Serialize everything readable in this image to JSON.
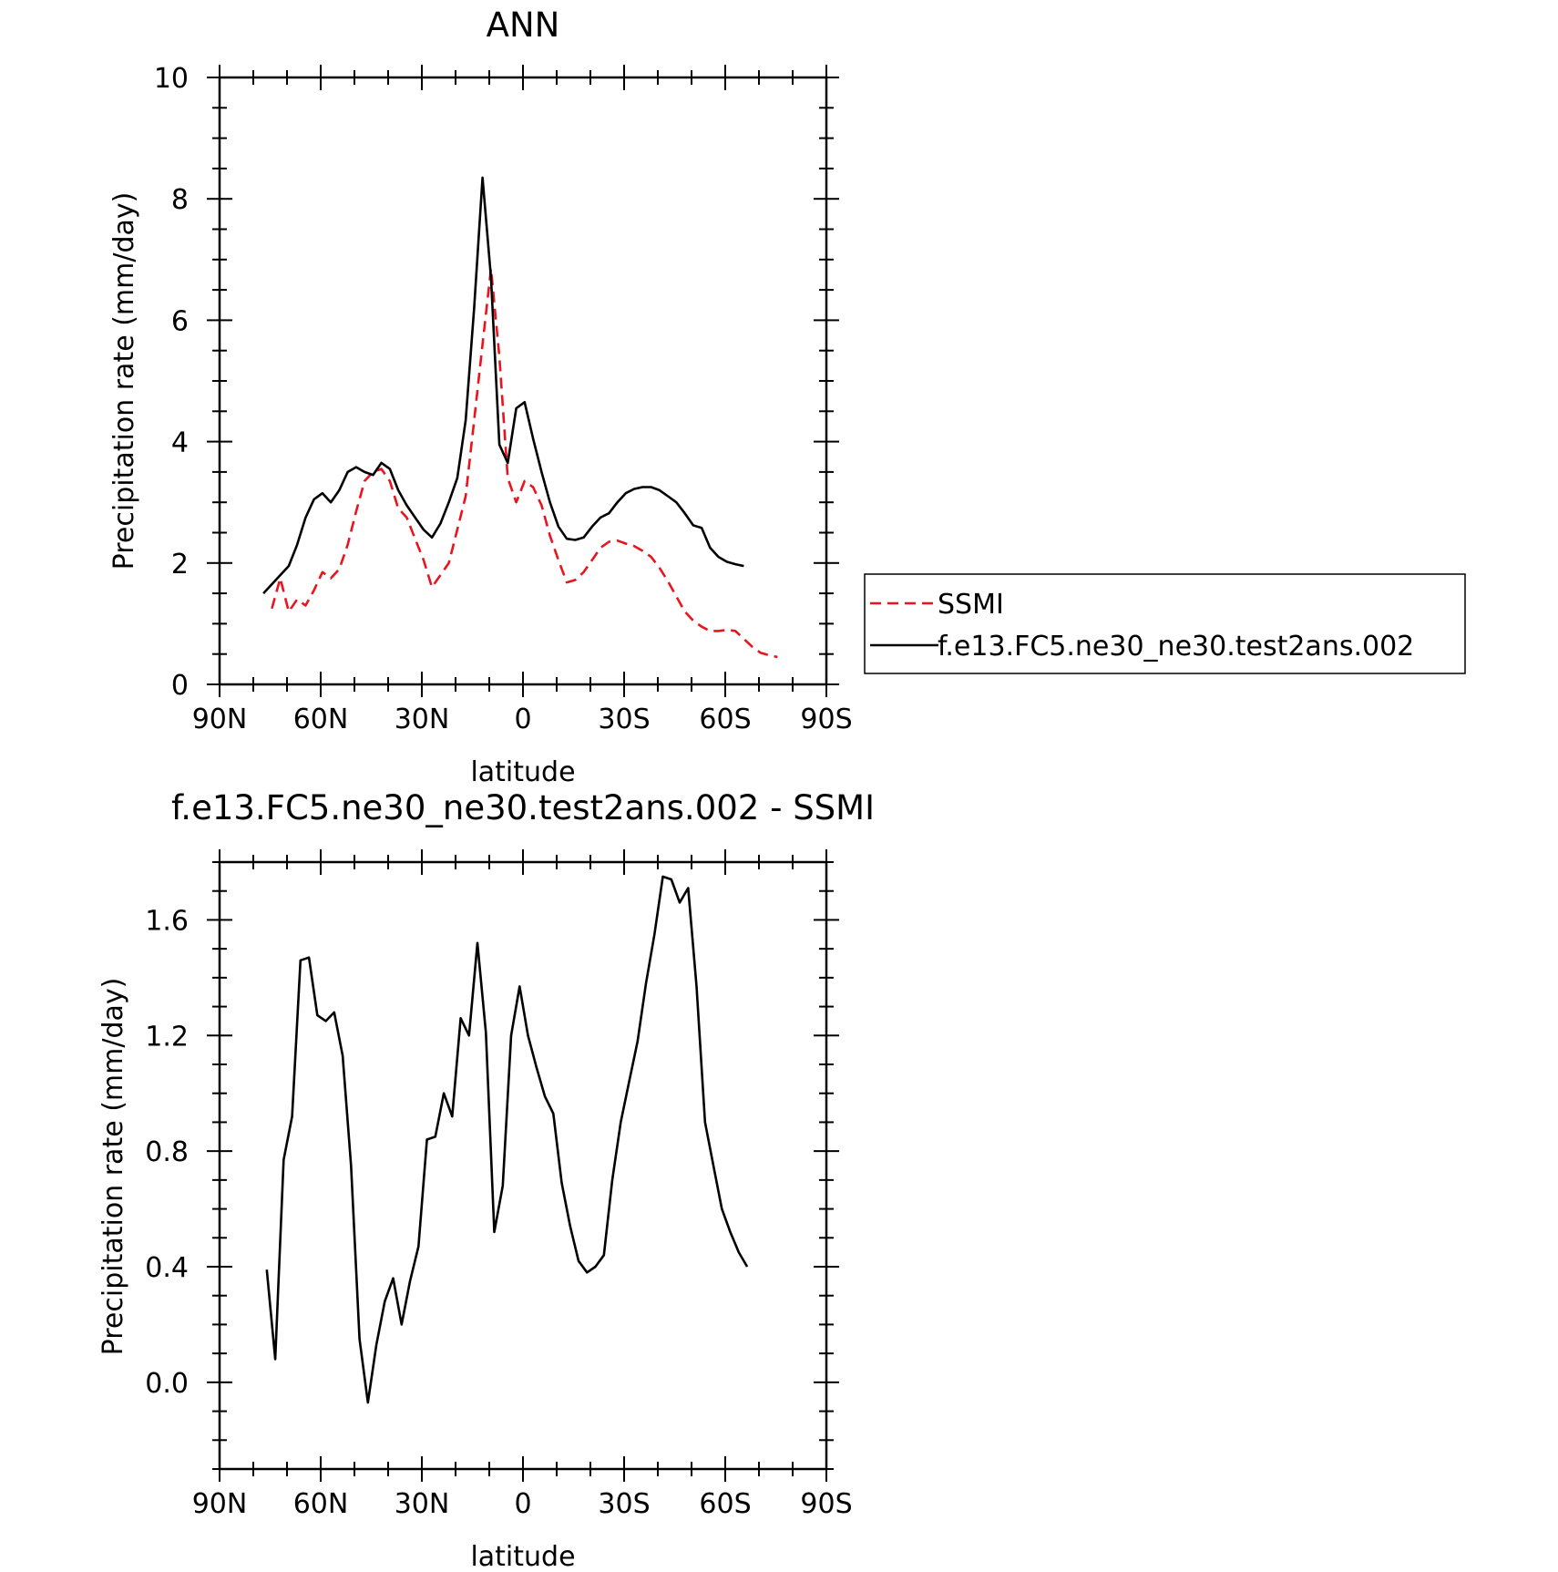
{
  "chart_data": [
    {
      "type": "line",
      "title": "ANN",
      "xlabel": "latitude",
      "ylabel": "Precipitation rate (mm/day)",
      "xlim": [
        90,
        -90
      ],
      "ylim": [
        0,
        10
      ],
      "xticks": [
        90,
        60,
        30,
        0,
        -30,
        -60,
        -90
      ],
      "xtick_labels": [
        "90N",
        "60N",
        "30N",
        "0",
        "30S",
        "60S",
        "90S"
      ],
      "yticks": [
        0,
        2,
        4,
        6,
        8,
        10
      ],
      "ytick_labels": [
        "0",
        "2",
        "4",
        "6",
        "8",
        "10"
      ],
      "grid": false,
      "legend_position": "right",
      "series": [
        {
          "name": "SSMI",
          "color": "#e8141e",
          "dash": "dashed",
          "x": [
            74.5,
            72,
            69.5,
            67,
            64.5,
            62,
            59.5,
            57,
            54.5,
            52,
            49.5,
            47,
            44.5,
            42,
            39.5,
            37,
            34.5,
            32,
            29.5,
            27,
            24.5,
            22,
            19.5,
            17,
            14.5,
            12,
            9.5,
            7,
            4.5,
            2,
            -0.5,
            -3,
            -5.5,
            -8,
            -10.5,
            -13,
            -15.5,
            -18,
            -20.5,
            -23,
            -25.5,
            -28,
            -30.5,
            -33,
            -35.5,
            -38,
            -40.5,
            -43,
            -45.5,
            -48,
            -50.5,
            -53,
            -55.5,
            -58,
            -60.5,
            -63,
            -65.5,
            -68,
            -70.5,
            -73,
            -75.5
          ],
          "y": [
            1.25,
            1.75,
            1.2,
            1.4,
            1.3,
            1.55,
            1.85,
            1.75,
            1.9,
            2.3,
            2.85,
            3.35,
            3.5,
            3.55,
            3.35,
            2.9,
            2.75,
            2.4,
            2.05,
            1.6,
            1.8,
            2.0,
            2.55,
            3.1,
            4.35,
            5.6,
            6.85,
            5.4,
            3.4,
            3.0,
            3.35,
            3.25,
            2.95,
            2.45,
            2.05,
            1.68,
            1.72,
            1.85,
            2.05,
            2.25,
            2.35,
            2.37,
            2.32,
            2.28,
            2.2,
            2.1,
            1.92,
            1.7,
            1.45,
            1.2,
            1.05,
            0.95,
            0.88,
            0.88,
            0.9,
            0.88,
            0.75,
            0.62,
            0.52,
            0.48,
            0.45
          ]
        },
        {
          "name": "f.e13.FC5.ne30_ne30.test2ans.002",
          "color": "#000000",
          "dash": "solid",
          "x": [
            77,
            74.5,
            72,
            69.5,
            67,
            64.5,
            62,
            59.5,
            57,
            54.5,
            52,
            49.5,
            47,
            44.5,
            42,
            39.5,
            37,
            34.5,
            32,
            29.5,
            27,
            24.5,
            22,
            19.5,
            17,
            14.5,
            12,
            9.5,
            7,
            4.5,
            2,
            -0.5,
            -3,
            -5.5,
            -8,
            -10.5,
            -13,
            -15.5,
            -18,
            -20.5,
            -23,
            -25.5,
            -28,
            -30.5,
            -33,
            -35.5,
            -38,
            -40.5,
            -43,
            -45.5,
            -48,
            -50.5,
            -53,
            -55.5,
            -58,
            -60.5,
            -63,
            -65.5
          ],
          "y": [
            1.5,
            1.65,
            1.8,
            1.95,
            2.3,
            2.75,
            3.05,
            3.15,
            3.0,
            3.2,
            3.5,
            3.58,
            3.5,
            3.45,
            3.65,
            3.55,
            3.2,
            2.95,
            2.75,
            2.55,
            2.42,
            2.65,
            3.0,
            3.4,
            4.35,
            6.2,
            8.35,
            6.7,
            3.95,
            3.65,
            4.55,
            4.65,
            4.05,
            3.5,
            3.0,
            2.6,
            2.4,
            2.38,
            2.42,
            2.6,
            2.75,
            2.82,
            3.0,
            3.15,
            3.22,
            3.25,
            3.25,
            3.2,
            3.1,
            3.0,
            2.82,
            2.62,
            2.58,
            2.25,
            2.1,
            2.02,
            1.98,
            1.95
          ]
        }
      ]
    },
    {
      "type": "line",
      "title": "f.e13.FC5.ne30_ne30.test2ans.002 - SSMI",
      "xlabel": "latitude",
      "ylabel": "Precipitation rate (mm/day)",
      "xlim": [
        90,
        -90
      ],
      "ylim": [
        -0.3,
        1.8
      ],
      "xticks": [
        90,
        60,
        30,
        0,
        -30,
        -60,
        -90
      ],
      "xtick_labels": [
        "90N",
        "60N",
        "30N",
        "0",
        "30S",
        "60S",
        "90S"
      ],
      "yticks": [
        0.0,
        0.4,
        0.8,
        1.2,
        1.6
      ],
      "ytick_labels": [
        "0.0",
        "0.4",
        "0.8",
        "1.2",
        "1.6"
      ],
      "grid": false,
      "series": [
        {
          "color": "#000000",
          "dash": "solid",
          "x": [
            76,
            73.5,
            71,
            68.5,
            66,
            63.5,
            61,
            58.5,
            56,
            53.5,
            51,
            48.5,
            46,
            43.5,
            41,
            38.5,
            36,
            33.5,
            31,
            28.5,
            26,
            23.5,
            21,
            18.5,
            16,
            13.5,
            11,
            8.5,
            6,
            3.5,
            1,
            -1.5,
            -4,
            -6.5,
            -9,
            -11.5,
            -14,
            -16.5,
            -19,
            -21.5,
            -24,
            -26.5,
            -29,
            -31.5,
            -34,
            -36.5,
            -39,
            -41.5,
            -44,
            -46.5,
            -49,
            -51.5,
            -54,
            -56.5,
            -59,
            -61.5,
            -64,
            -66.5
          ],
          "y": [
            0.39,
            0.08,
            0.77,
            0.92,
            1.46,
            1.47,
            1.27,
            1.25,
            1.28,
            1.13,
            0.75,
            0.15,
            -0.07,
            0.13,
            0.28,
            0.36,
            0.2,
            0.35,
            0.47,
            0.84,
            0.85,
            1.0,
            0.92,
            1.26,
            1.2,
            1.52,
            1.21,
            0.52,
            0.68,
            1.2,
            1.37,
            1.2,
            1.09,
            0.99,
            0.93,
            0.69,
            0.54,
            0.42,
            0.38,
            0.4,
            0.44,
            0.7,
            0.9,
            1.04,
            1.18,
            1.38,
            1.55,
            1.75,
            1.74,
            1.66,
            1.71,
            1.37,
            0.9,
            0.75,
            0.6,
            0.52,
            0.45,
            0.4
          ]
        }
      ]
    }
  ]
}
